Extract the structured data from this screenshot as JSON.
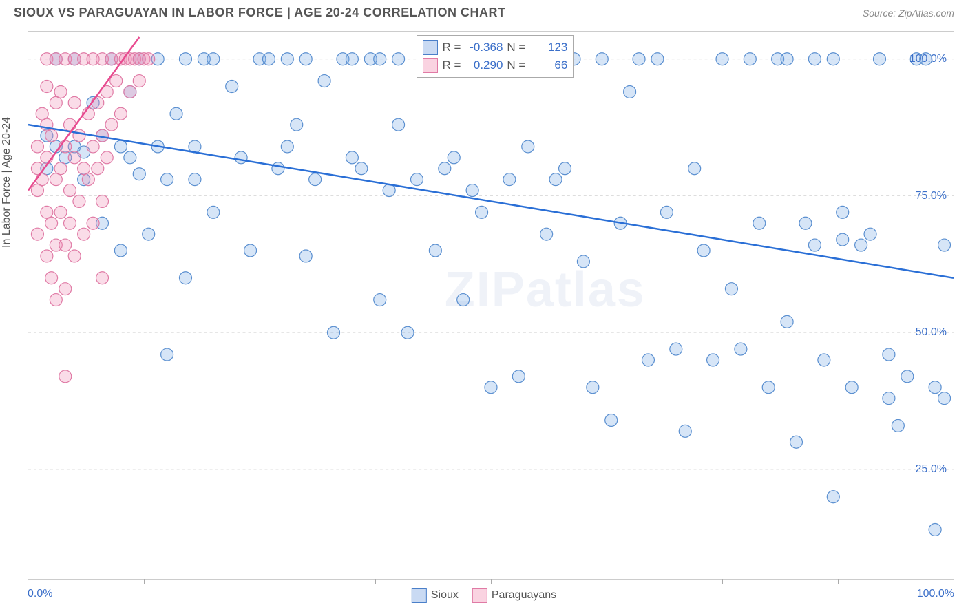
{
  "header": {
    "title": "SIOUX VS PARAGUAYAN IN LABOR FORCE | AGE 20-24 CORRELATION CHART",
    "source": "Source: ZipAtlas.com"
  },
  "chart": {
    "type": "scatter",
    "ylabel": "In Labor Force | Age 20-24",
    "xlim": [
      0,
      100
    ],
    "ylim": [
      5,
      105
    ],
    "yticks": [
      {
        "value": 100,
        "label": "100.0%"
      },
      {
        "value": 75,
        "label": "75.0%"
      },
      {
        "value": 50,
        "label": "50.0%"
      },
      {
        "value": 25,
        "label": "25.0%"
      }
    ],
    "xticks_minor": [
      12.5,
      25,
      37.5,
      50,
      62.5,
      75,
      87.5,
      100
    ],
    "xtick_labels": [
      {
        "x": 0,
        "label": "0.0%"
      },
      {
        "x": 100,
        "label": "100.0%"
      }
    ],
    "background_color": "#ffffff",
    "grid_color": "#dddddd",
    "axis_color": "#cccccc",
    "watermark": "ZIPatlas",
    "series": [
      {
        "name": "Sioux",
        "marker_color_fill": "rgba(120,170,230,0.30)",
        "marker_color_stroke": "#5a8fd0",
        "marker_radius": 9,
        "line_color": "#2a6fd6",
        "line_width": 2.5,
        "trend": {
          "x1": 0,
          "y1": 88,
          "x2": 100,
          "y2": 60
        },
        "R": "-0.368",
        "N": "123",
        "points": [
          [
            2,
            86
          ],
          [
            2,
            80
          ],
          [
            3,
            84
          ],
          [
            3,
            100
          ],
          [
            4,
            82
          ],
          [
            5,
            100
          ],
          [
            5,
            84
          ],
          [
            6,
            83
          ],
          [
            6,
            78
          ],
          [
            7,
            92
          ],
          [
            8,
            86
          ],
          [
            8,
            70
          ],
          [
            9,
            100
          ],
          [
            10,
            84
          ],
          [
            10,
            65
          ],
          [
            11,
            82
          ],
          [
            11,
            94
          ],
          [
            12,
            100
          ],
          [
            12,
            79
          ],
          [
            13,
            68
          ],
          [
            14,
            84
          ],
          [
            14,
            100
          ],
          [
            15,
            78
          ],
          [
            15,
            46
          ],
          [
            16,
            90
          ],
          [
            17,
            100
          ],
          [
            17,
            60
          ],
          [
            18,
            84
          ],
          [
            18,
            78
          ],
          [
            19,
            100
          ],
          [
            20,
            72
          ],
          [
            20,
            100
          ],
          [
            22,
            95
          ],
          [
            23,
            82
          ],
          [
            24,
            65
          ],
          [
            25,
            100
          ],
          [
            26,
            100
          ],
          [
            27,
            80
          ],
          [
            28,
            100
          ],
          [
            28,
            84
          ],
          [
            29,
            88
          ],
          [
            30,
            100
          ],
          [
            30,
            64
          ],
          [
            31,
            78
          ],
          [
            32,
            96
          ],
          [
            33,
            50
          ],
          [
            34,
            100
          ],
          [
            35,
            100
          ],
          [
            36,
            80
          ],
          [
            37,
            100
          ],
          [
            38,
            56
          ],
          [
            38,
            100
          ],
          [
            39,
            76
          ],
          [
            40,
            100
          ],
          [
            40,
            88
          ],
          [
            41,
            50
          ],
          [
            42,
            78
          ],
          [
            43,
            100
          ],
          [
            44,
            65
          ],
          [
            45,
            80
          ],
          [
            46,
            82
          ],
          [
            47,
            56
          ],
          [
            48,
            76
          ],
          [
            49,
            72
          ],
          [
            50,
            40
          ],
          [
            50,
            100
          ],
          [
            52,
            78
          ],
          [
            53,
            42
          ],
          [
            54,
            84
          ],
          [
            55,
            100
          ],
          [
            56,
            68
          ],
          [
            57,
            78
          ],
          [
            58,
            80
          ],
          [
            59,
            100
          ],
          [
            60,
            63
          ],
          [
            61,
            40
          ],
          [
            62,
            100
          ],
          [
            63,
            34
          ],
          [
            64,
            70
          ],
          [
            65,
            94
          ],
          [
            66,
            100
          ],
          [
            67,
            45
          ],
          [
            68,
            100
          ],
          [
            69,
            72
          ],
          [
            70,
            47
          ],
          [
            71,
            32
          ],
          [
            72,
            80
          ],
          [
            73,
            65
          ],
          [
            74,
            45
          ],
          [
            75,
            100
          ],
          [
            76,
            58
          ],
          [
            77,
            47
          ],
          [
            78,
            100
          ],
          [
            79,
            70
          ],
          [
            80,
            40
          ],
          [
            81,
            100
          ],
          [
            82,
            52
          ],
          [
            83,
            30
          ],
          [
            84,
            70
          ],
          [
            85,
            66
          ],
          [
            85,
            100
          ],
          [
            86,
            45
          ],
          [
            87,
            20
          ],
          [
            88,
            72
          ],
          [
            88,
            67
          ],
          [
            89,
            40
          ],
          [
            90,
            66
          ],
          [
            91,
            68
          ],
          [
            92,
            100
          ],
          [
            93,
            38
          ],
          [
            93,
            46
          ],
          [
            94,
            33
          ],
          [
            95,
            42
          ],
          [
            96,
            100
          ],
          [
            97,
            100
          ],
          [
            98,
            40
          ],
          [
            98,
            14
          ],
          [
            99,
            38
          ],
          [
            99,
            66
          ],
          [
            82,
            100
          ],
          [
            44,
            100
          ],
          [
            35,
            82
          ],
          [
            87,
            100
          ]
        ]
      },
      {
        "name": "Paraguayans",
        "marker_color_fill": "rgba(240,140,180,0.30)",
        "marker_color_stroke": "#e07aa5",
        "marker_radius": 9,
        "line_color": "#e84a8f",
        "line_width": 2.5,
        "trend": {
          "x1": 0,
          "y1": 76,
          "x2": 12,
          "y2": 104
        },
        "R": "0.290",
        "N": "66",
        "points": [
          [
            1,
            76
          ],
          [
            1,
            80
          ],
          [
            1,
            68
          ],
          [
            1,
            84
          ],
          [
            1.5,
            78
          ],
          [
            1.5,
            90
          ],
          [
            2,
            82
          ],
          [
            2,
            72
          ],
          [
            2,
            64
          ],
          [
            2,
            88
          ],
          [
            2,
            95
          ],
          [
            2,
            100
          ],
          [
            2.5,
            70
          ],
          [
            2.5,
            86
          ],
          [
            2.5,
            60
          ],
          [
            3,
            78
          ],
          [
            3,
            66
          ],
          [
            3,
            92
          ],
          [
            3,
            100
          ],
          [
            3,
            56
          ],
          [
            3.5,
            80
          ],
          [
            3.5,
            72
          ],
          [
            3.5,
            94
          ],
          [
            4,
            84
          ],
          [
            4,
            66
          ],
          [
            4,
            100
          ],
          [
            4,
            58
          ],
          [
            4,
            42
          ],
          [
            4.5,
            76
          ],
          [
            4.5,
            88
          ],
          [
            4.5,
            70
          ],
          [
            5,
            82
          ],
          [
            5,
            64
          ],
          [
            5,
            100
          ],
          [
            5,
            92
          ],
          [
            5.5,
            74
          ],
          [
            5.5,
            86
          ],
          [
            6,
            80
          ],
          [
            6,
            68
          ],
          [
            6,
            100
          ],
          [
            6.5,
            90
          ],
          [
            6.5,
            78
          ],
          [
            7,
            84
          ],
          [
            7,
            100
          ],
          [
            7,
            70
          ],
          [
            7.5,
            92
          ],
          [
            7.5,
            80
          ],
          [
            8,
            100
          ],
          [
            8,
            86
          ],
          [
            8,
            74
          ],
          [
            8.5,
            94
          ],
          [
            8.5,
            82
          ],
          [
            9,
            100
          ],
          [
            9,
            88
          ],
          [
            9.5,
            96
          ],
          [
            10,
            100
          ],
          [
            10,
            90
          ],
          [
            10.5,
            100
          ],
          [
            11,
            100
          ],
          [
            11,
            94
          ],
          [
            11.5,
            100
          ],
          [
            12,
            100
          ],
          [
            12,
            96
          ],
          [
            12.5,
            100
          ],
          [
            13,
            100
          ],
          [
            8,
            60
          ]
        ]
      }
    ],
    "stats_box": {
      "rows": [
        {
          "swatch": "blue",
          "R_label": "R =",
          "R": "-0.368",
          "N_label": "N =",
          "N": "123"
        },
        {
          "swatch": "pink",
          "R_label": "R =",
          "R": "0.290",
          "N_label": "N =",
          "N": "66"
        }
      ]
    },
    "legend": [
      {
        "swatch": "blue",
        "label": "Sioux"
      },
      {
        "swatch": "pink",
        "label": "Paraguayans"
      }
    ]
  }
}
